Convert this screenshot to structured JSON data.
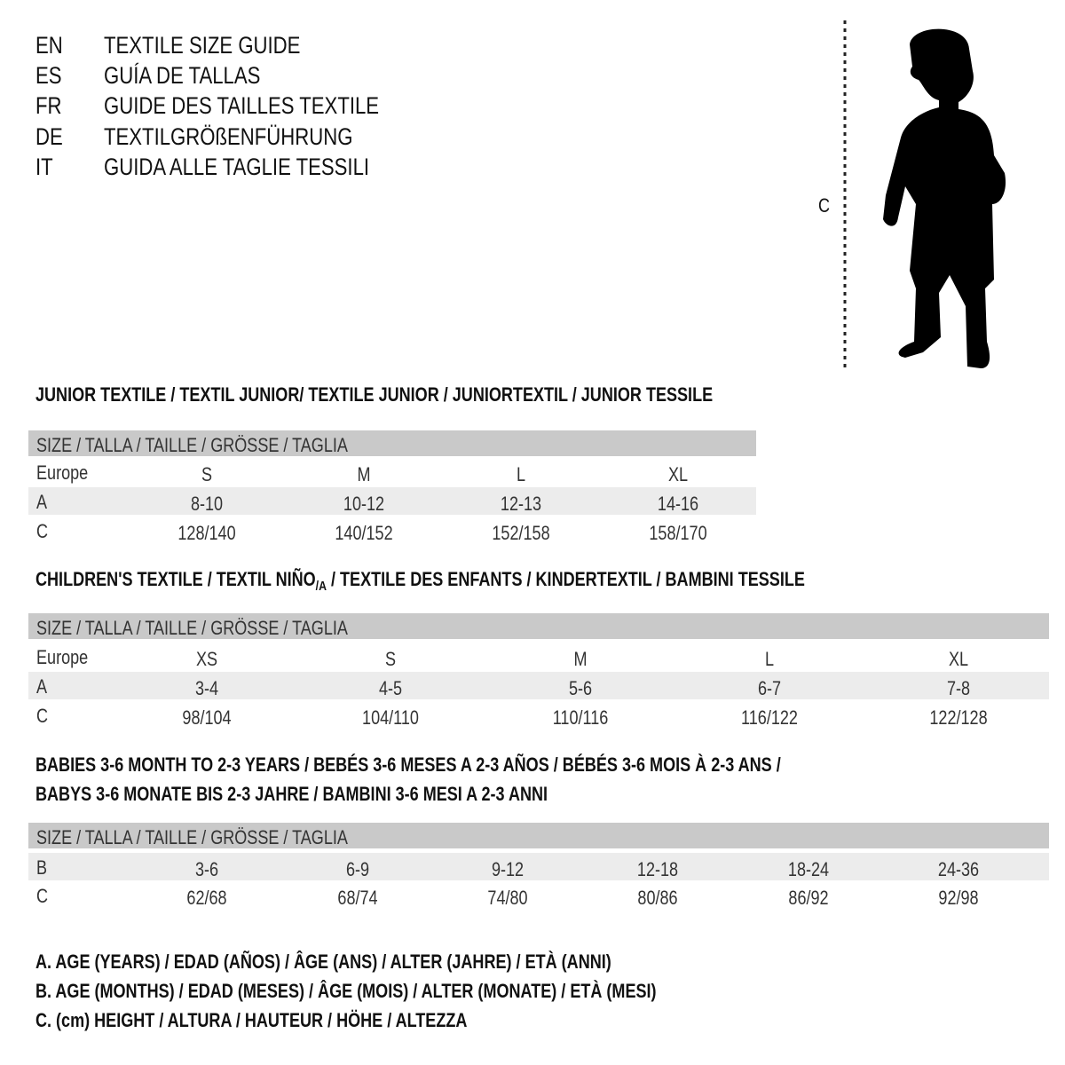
{
  "titles": [
    {
      "code": "EN",
      "text": "TEXTILE SIZE GUIDE"
    },
    {
      "code": "ES",
      "text": "GUÍA DE TALLAS"
    },
    {
      "code": "FR",
      "text": "GUIDE DES TAILLES TEXTILE"
    },
    {
      "code": "DE",
      "text": "TEXTILGRÖßENFÜHRUNG"
    },
    {
      "code": "IT",
      "text": "GUIDA ALLE TAGLIE TESSILI"
    }
  ],
  "figure": {
    "measure_label": "C",
    "icon": "child-silhouette-icon"
  },
  "header_label": "SIZE / TALLA / TAILLE / GRÖSSE / TAGLIA",
  "junior": {
    "heading": "JUNIOR TEXTILE / TEXTIL JUNIOR/ TEXTILE JUNIOR / JUNIORTEXTIL / JUNIOR TESSILE",
    "rows": [
      {
        "label": "Europe",
        "values": [
          "S",
          "M",
          "L",
          "XL"
        ]
      },
      {
        "label": "A",
        "values": [
          "8-10",
          "10-12",
          "12-13",
          "14-16"
        ]
      },
      {
        "label": "C",
        "values": [
          "128/140",
          "140/152",
          "152/158",
          "158/170"
        ]
      }
    ]
  },
  "children": {
    "heading_a": "CHILDREN'S TEXTILE / TEXTIL NIÑO",
    "heading_sub": "/A",
    "heading_b": " / TEXTILE DES ENFANTS / KINDERTEXTIL / BAMBINI TESSILE",
    "rows": [
      {
        "label": "Europe",
        "values": [
          "XS",
          "S",
          "M",
          "L",
          "XL"
        ]
      },
      {
        "label": "A",
        "values": [
          "3-4",
          "4-5",
          "5-6",
          "6-7",
          "7-8"
        ]
      },
      {
        "label": "C",
        "values": [
          "98/104",
          "104/110",
          "110/116",
          "116/122",
          "122/128"
        ]
      }
    ]
  },
  "babies": {
    "heading_1": "BABIES 3-6 MONTH TO 2-3 YEARS / BEBÉS 3-6 MESES A 2-3 AÑOS / BÉBÉS 3-6 MOIS À 2-3 ANS /",
    "heading_2": "BABYS 3-6 MONATE BIS 2-3 JAHRE / BAMBINI 3-6 MESI A 2-3 ANNI",
    "rows": [
      {
        "label": "B",
        "values": [
          "3-6",
          "6-9",
          "9-12",
          "12-18",
          "18-24",
          "24-36"
        ]
      },
      {
        "label": "C",
        "values": [
          "62/68",
          "68/74",
          "74/80",
          "80/86",
          "86/92",
          "92/98"
        ]
      }
    ]
  },
  "legend": [
    "A. AGE (YEARS) / EDAD (AÑOS) / ÂGE (ANS) / ALTER (JAHRE) / ETÀ (ANNI)",
    "B. AGE (MONTHS) / EDAD (MESES) / ÂGE (MOIS) / ALTER (MONATE) / ETÀ (MESI)",
    "C. (cm) HEIGHT / ALTURA / HAUTEUR / HÖHE / ALTEZZA"
  ],
  "colors": {
    "header_bg": "#c9c9c9",
    "alt_row_bg": "#ececec"
  }
}
